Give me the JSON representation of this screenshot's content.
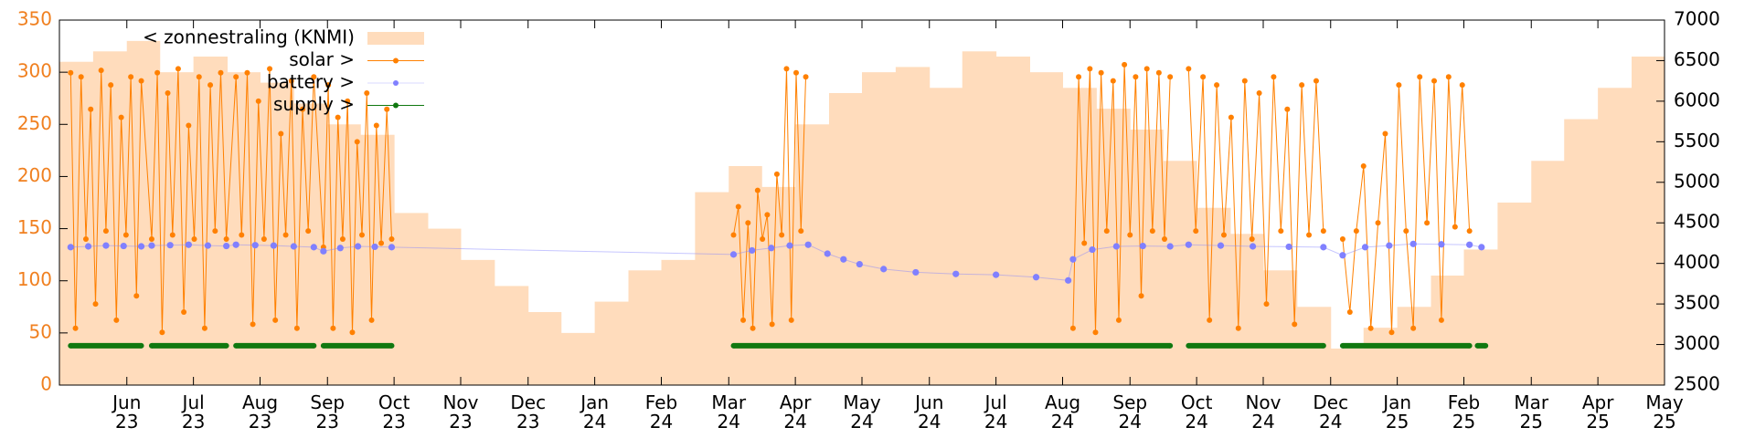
{
  "chart_data": {
    "type": "line",
    "xlim": [
      2023.333,
      2025.333
    ],
    "xticks": [
      {
        "value": 2023.417,
        "label": "Jun\n23"
      },
      {
        "value": 2023.5,
        "label": "Jul\n23"
      },
      {
        "value": 2023.583,
        "label": "Aug\n23"
      },
      {
        "value": 2023.667,
        "label": "Sep\n23"
      },
      {
        "value": 2023.75,
        "label": "Oct\n23"
      },
      {
        "value": 2023.833,
        "label": "Nov\n23"
      },
      {
        "value": 2023.917,
        "label": "Dec\n23"
      },
      {
        "value": 2024.0,
        "label": "Jan\n24"
      },
      {
        "value": 2024.083,
        "label": "Feb\n24"
      },
      {
        "value": 2024.167,
        "label": "Mar\n24"
      },
      {
        "value": 2024.25,
        "label": "Apr\n24"
      },
      {
        "value": 2024.333,
        "label": "May\n24"
      },
      {
        "value": 2024.417,
        "label": "Jun\n24"
      },
      {
        "value": 2024.5,
        "label": "Jul\n24"
      },
      {
        "value": 2024.583,
        "label": "Aug\n24"
      },
      {
        "value": 2024.667,
        "label": "Sep\n24"
      },
      {
        "value": 2024.75,
        "label": "Oct\n24"
      },
      {
        "value": 2024.833,
        "label": "Nov\n24"
      },
      {
        "value": 2024.917,
        "label": "Dec\n24"
      },
      {
        "value": 2025.0,
        "label": "Jan\n25"
      },
      {
        "value": 2025.083,
        "label": "Feb\n25"
      },
      {
        "value": 2025.167,
        "label": "Mar\n25"
      },
      {
        "value": 2025.25,
        "label": "Apr\n25"
      },
      {
        "value": 2025.333,
        "label": "May\n25"
      }
    ],
    "ylim": [
      0,
      350
    ],
    "yticks": [
      0,
      50,
      100,
      150,
      200,
      250,
      300,
      350
    ],
    "ytick_color": "#f08020",
    "y2lim": [
      2500,
      7000
    ],
    "y2ticks": [
      2500,
      3000,
      3500,
      4000,
      4500,
      5000,
      5500,
      6000,
      6500,
      7000
    ],
    "legend": "top-left",
    "grid": false,
    "series": [
      {
        "name": "< zonnestraling (KNMI)",
        "color": "#ffdcbc",
        "style": "steps-fill",
        "x": [
          2023.333,
          2023.375,
          2023.417,
          2023.458,
          2023.5,
          2023.542,
          2023.583,
          2023.625,
          2023.667,
          2023.708,
          2023.75,
          2023.792,
          2023.833,
          2023.875,
          2023.917,
          2023.958,
          2024.0,
          2024.042,
          2024.083,
          2024.125,
          2024.167,
          2024.208,
          2024.25,
          2024.292,
          2024.333,
          2024.375,
          2024.417,
          2024.458,
          2024.5,
          2024.542,
          2024.583,
          2024.625,
          2024.667,
          2024.708,
          2024.75,
          2024.792,
          2024.833,
          2024.875,
          2024.917,
          2024.958,
          2025.0,
          2025.042,
          2025.083,
          2025.125,
          2025.167,
          2025.208,
          2025.25,
          2025.292
        ],
        "values": [
          310,
          320,
          330,
          300,
          315,
          300,
          290,
          270,
          250,
          240,
          165,
          150,
          120,
          95,
          70,
          50,
          80,
          110,
          120,
          185,
          210,
          190,
          250,
          280,
          300,
          305,
          285,
          320,
          315,
          300,
          285,
          265,
          245,
          215,
          170,
          145,
          110,
          75,
          35,
          55,
          75,
          105,
          130,
          175,
          215,
          255,
          285,
          315
        ]
      },
      {
        "name": "solar >",
        "color": "#ff8000",
        "style": "linespoints",
        "axis": "y2",
        "x": [
          2023.347,
          2023.353,
          2023.36,
          2023.366,
          2023.372,
          2023.378,
          2023.385,
          2023.391,
          2023.397,
          2023.404,
          2023.41,
          2023.416,
          2023.422,
          2023.429,
          2023.435,
          2023.448,
          2023.455,
          2023.461,
          2023.468,
          2023.474,
          2023.481,
          2023.488,
          2023.494,
          2023.501,
          2023.507,
          2023.514,
          2023.521,
          2023.527,
          2023.534,
          2023.541,
          2023.553,
          2023.56,
          2023.567,
          2023.574,
          2023.581,
          2023.588,
          2023.595,
          2023.602,
          2023.609,
          2023.615,
          2023.622,
          2023.629,
          2023.636,
          2023.643,
          2023.65,
          2023.662,
          2023.668,
          2023.674,
          2023.68,
          2023.686,
          2023.692,
          2023.698,
          2023.704,
          2023.71,
          2023.716,
          2023.722,
          2023.728,
          2023.734,
          2023.741,
          2023.747,
          2024.0,
          2024.173,
          2024.179,
          2024.185,
          2024.191,
          2024.197,
          2024.203,
          2024.209,
          2024.215,
          2024.221,
          2024.227,
          2024.233,
          2024.239,
          2024.245,
          2024.251,
          2024.257,
          2024.263,
          2024.4,
          2024.596,
          2024.603,
          2024.61,
          2024.617,
          2024.624,
          2024.631,
          2024.638,
          2024.646,
          2024.653,
          2024.66,
          2024.667,
          2024.674,
          2024.681,
          2024.688,
          2024.695,
          2024.703,
          2024.71,
          2024.717,
          2024.728,
          2024.74,
          2024.749,
          2024.758,
          2024.766,
          2024.775,
          2024.784,
          2024.793,
          2024.802,
          2024.81,
          2024.819,
          2024.828,
          2024.837,
          2024.846,
          2024.855,
          2024.863,
          2024.872,
          2024.881,
          2024.89,
          2024.899,
          2024.908,
          2024.92,
          2024.932,
          2024.941,
          2024.949,
          2024.958,
          2024.967,
          2024.976,
          2024.985,
          2024.993,
          2025.002,
          2025.011,
          2025.02,
          2025.028,
          2025.037,
          2025.046,
          2025.055,
          2025.064,
          2025.072,
          2025.081,
          2025.09
        ],
        "values": [
          6350,
          3200,
          6300,
          4300,
          5900,
          3500,
          6380,
          4400,
          6200,
          3300,
          5800,
          4350,
          6300,
          3600,
          6250,
          4300,
          6350,
          3150,
          6100,
          4350,
          6400,
          3400,
          5700,
          4300,
          6300,
          3200,
          6200,
          4400,
          6350,
          4300,
          6300,
          4350,
          6350,
          3250,
          6000,
          4300,
          6400,
          3300,
          5600,
          4350,
          6250,
          3200,
          5900,
          4400,
          6300,
          4200,
          6200,
          3200,
          5800,
          4300,
          6000,
          3150,
          5500,
          4350,
          6100,
          3300,
          5700,
          4250,
          5900,
          4300,
          null,
          4350,
          4700,
          3300,
          4500,
          3200,
          4900,
          4300,
          4600,
          3250,
          5100,
          4350,
          6400,
          3300,
          6350,
          4400,
          6300,
          null,
          3200,
          6300,
          4250,
          6400,
          3150,
          6350,
          4400,
          6250,
          3300,
          6450,
          4350,
          6300,
          3600,
          6400,
          4400,
          6350,
          4300,
          6300,
          null,
          6400,
          4400,
          6300,
          3300,
          6200,
          4350,
          5800,
          3200,
          6250,
          4300,
          6100,
          3500,
          6300,
          4400,
          5900,
          3250,
          6200,
          4350,
          6250,
          4400,
          null,
          4300,
          3400,
          4400,
          5200,
          3200,
          4500,
          5600,
          3150,
          6200,
          4400,
          3200,
          6300,
          4500,
          6250,
          3300,
          6300,
          4450,
          6200,
          4400
        ]
      },
      {
        "name": "battery >",
        "color": "#8080ff",
        "style": "points",
        "axis": "y2",
        "x": [
          2023.347,
          2023.369,
          2023.391,
          2023.413,
          2023.435,
          2023.448,
          2023.471,
          2023.494,
          2023.518,
          2023.541,
          2023.553,
          2023.577,
          2023.6,
          2023.625,
          2023.65,
          2023.662,
          2023.683,
          2023.705,
          2023.726,
          2023.747,
          2024.173,
          2024.196,
          2024.22,
          2024.243,
          2024.266,
          2024.29,
          2024.31,
          2024.33,
          2024.36,
          2024.4,
          2024.45,
          2024.5,
          2024.55,
          2024.59,
          2024.596,
          2024.62,
          2024.65,
          2024.683,
          2024.717,
          2024.74,
          2024.78,
          2024.82,
          2024.865,
          2024.908,
          2024.932,
          2024.96,
          2024.99,
          2025.02,
          2025.055,
          2025.09,
          2025.105
        ],
        "values": [
          4200,
          4210,
          4220,
          4215,
          4210,
          4220,
          4225,
          4230,
          4220,
          4215,
          4230,
          4225,
          4220,
          4210,
          4200,
          4150,
          4190,
          4210,
          4205,
          4200,
          4110,
          4160,
          4190,
          4220,
          4230,
          4120,
          4050,
          3990,
          3930,
          3890,
          3870,
          3860,
          3830,
          3790,
          4050,
          4170,
          4210,
          4215,
          4210,
          4230,
          4220,
          4210,
          4205,
          4200,
          4100,
          4200,
          4220,
          4240,
          4235,
          4230,
          4200
        ]
      },
      {
        "name": "supply >",
        "color": "#107810",
        "style": "thick",
        "axis": "y2",
        "x": [
          2023.347,
          2023.435,
          2023.441,
          2023.448,
          2023.541,
          2023.547,
          2023.553,
          2023.65,
          2023.656,
          2023.662,
          2023.747,
          2023.9,
          2024.173,
          2024.717,
          2024.728,
          2024.74,
          2024.908,
          2024.92,
          2024.932,
          2025.09,
          2025.095,
          2025.1,
          2025.11
        ],
        "values": [
          2985,
          2985,
          null,
          2985,
          2985,
          null,
          2985,
          2985,
          null,
          2985,
          2985,
          null,
          2985,
          2985,
          null,
          2985,
          2985,
          null,
          2985,
          2985,
          null,
          2985,
          2985
        ]
      }
    ]
  }
}
